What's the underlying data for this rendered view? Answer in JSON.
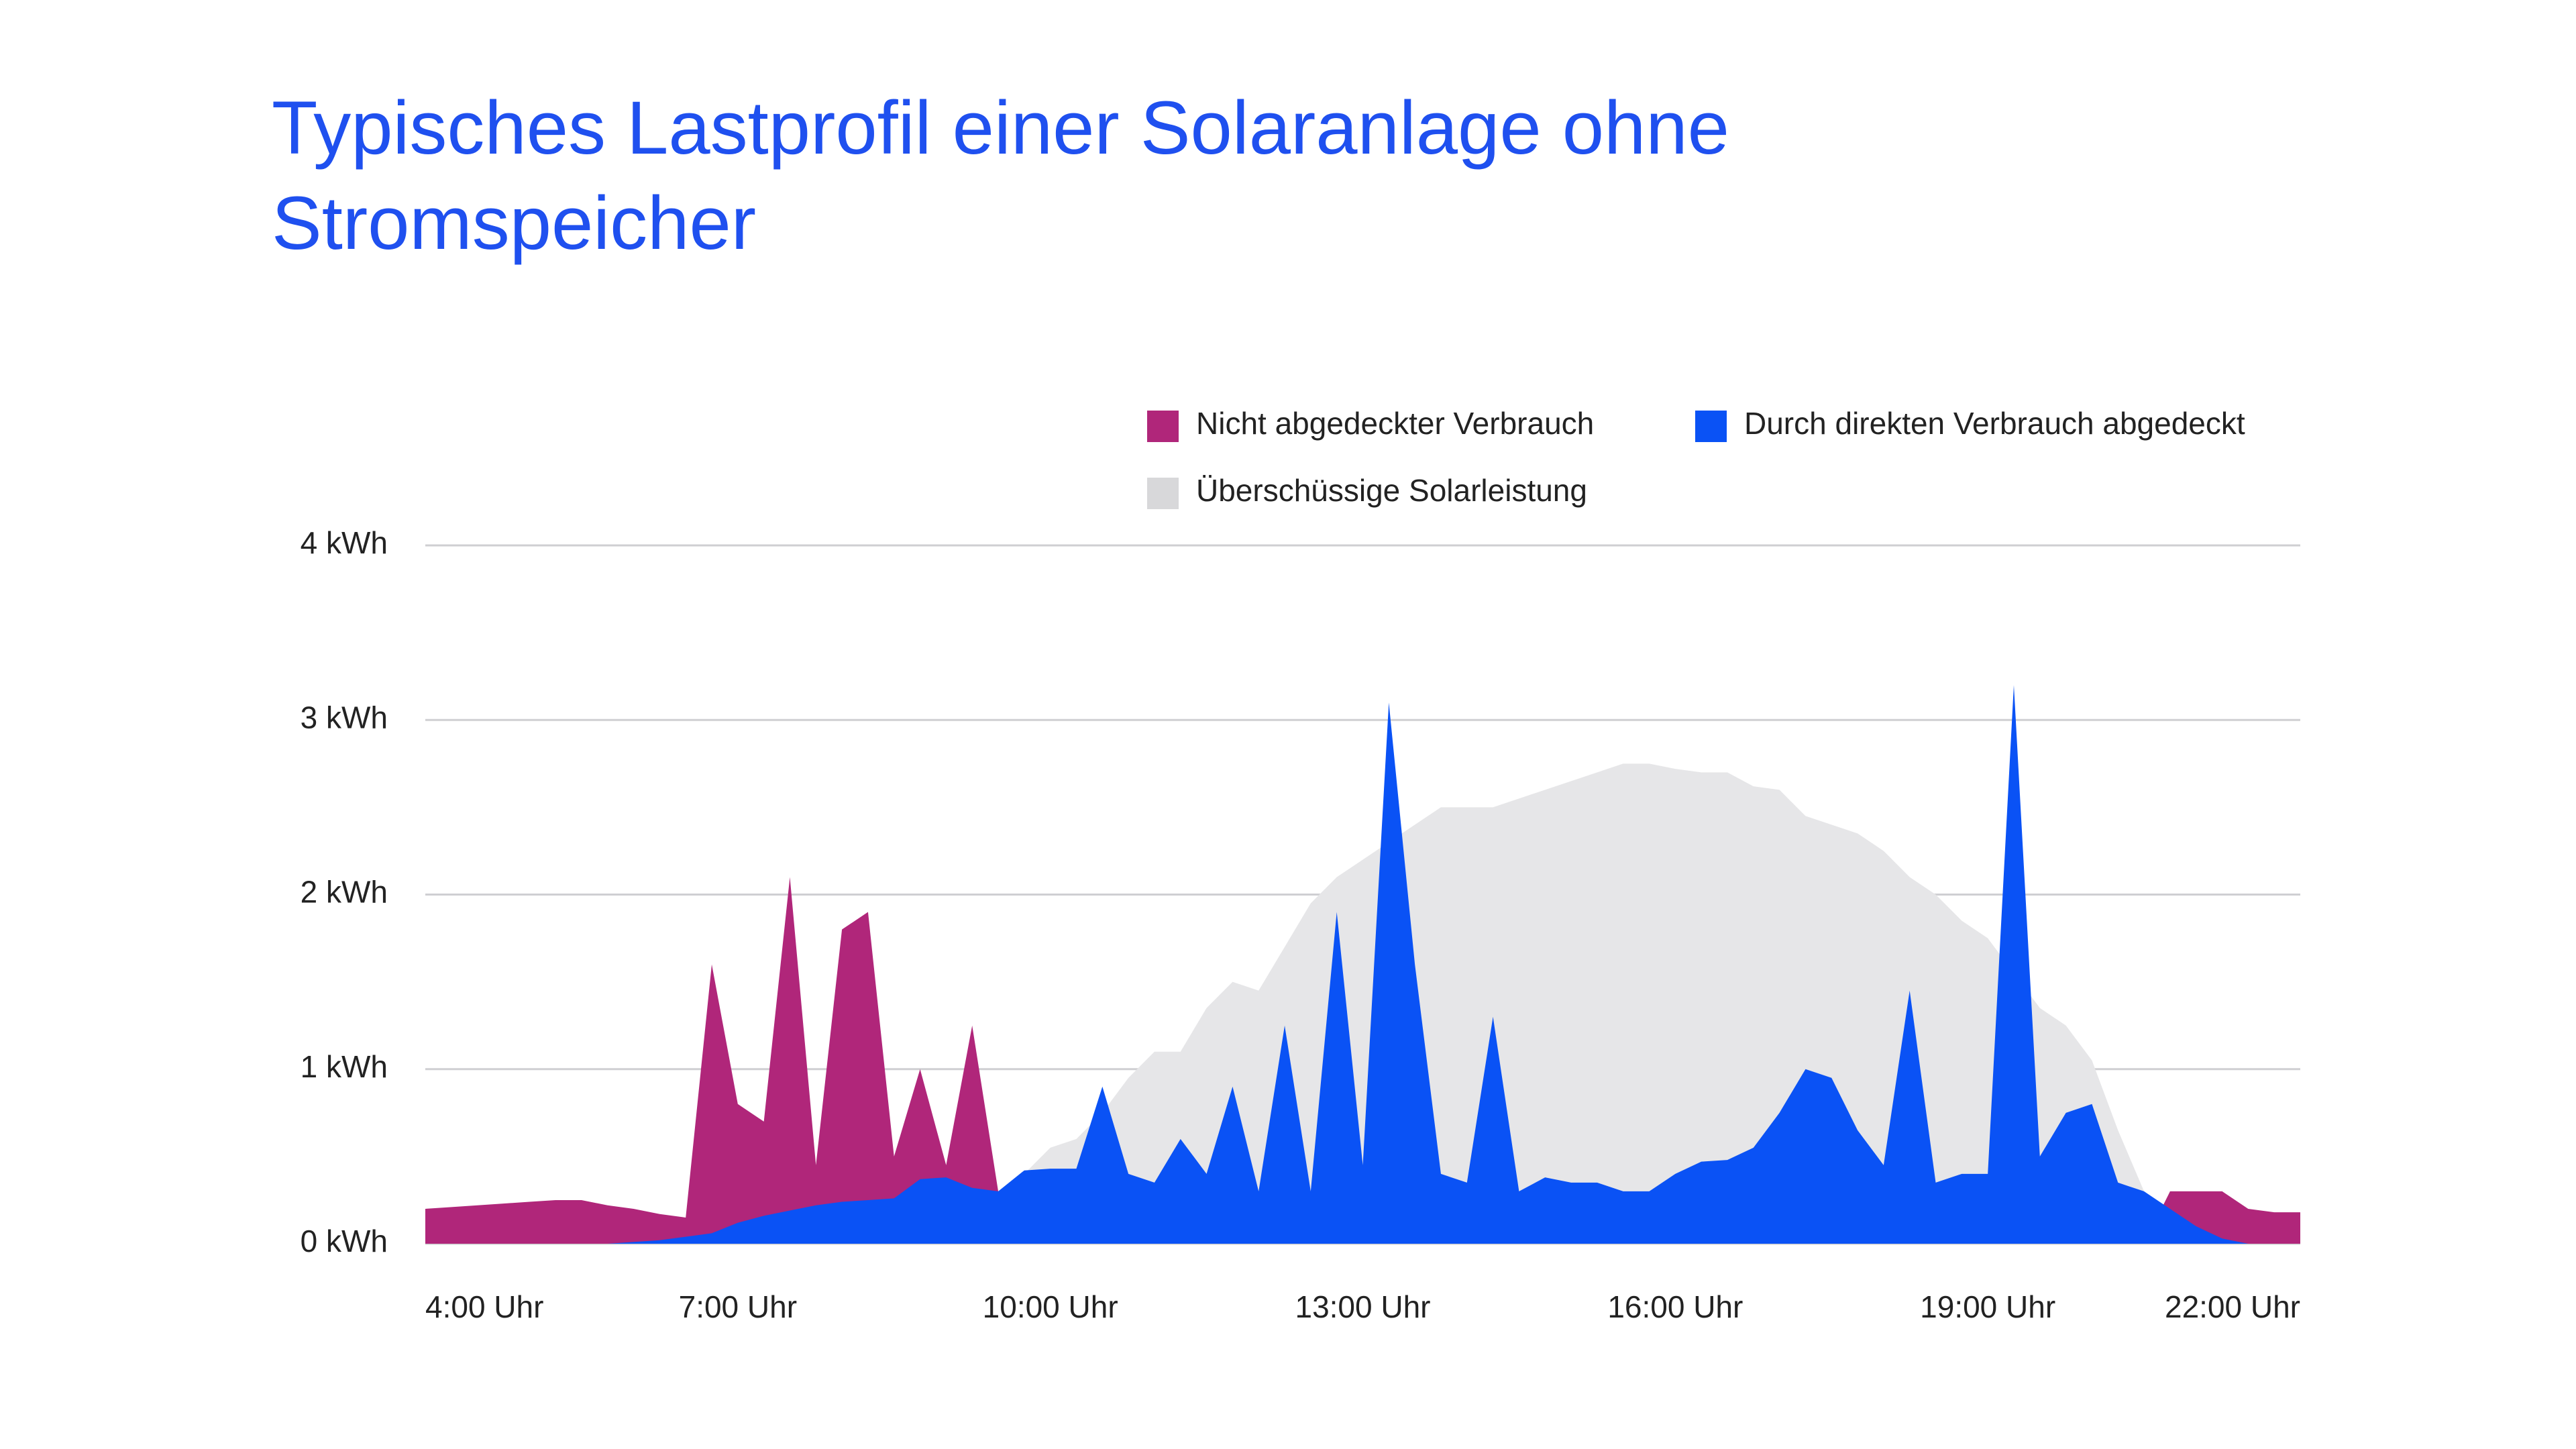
{
  "chart_data": {
    "type": "area",
    "title": "Typisches Lastprofil einer Solaranlage ohne Stromspeicher",
    "x": [
      4,
      4.25,
      4.5,
      4.75,
      5,
      5.25,
      5.5,
      5.75,
      6,
      6.25,
      6.5,
      6.75,
      7,
      7.25,
      7.5,
      7.75,
      8,
      8.25,
      8.5,
      8.75,
      9,
      9.25,
      9.5,
      9.75,
      10,
      10.25,
      10.5,
      10.75,
      11,
      11.25,
      11.5,
      11.75,
      12,
      12.25,
      12.5,
      12.75,
      13,
      13.25,
      13.5,
      13.75,
      14,
      14.25,
      14.5,
      14.75,
      15,
      15.25,
      15.5,
      15.75,
      16,
      16.25,
      16.5,
      16.75,
      17,
      17.25,
      17.5,
      17.75,
      18,
      18.25,
      18.5,
      18.75,
      19,
      19.25,
      19.5,
      19.75,
      20,
      20.25,
      20.5,
      20.75,
      21,
      21.25,
      21.5,
      21.75,
      22
    ],
    "xlim": [
      4,
      22
    ],
    "xticks": [
      {
        "value": 4,
        "label": "4:00 Uhr"
      },
      {
        "value": 7,
        "label": "7:00 Uhr"
      },
      {
        "value": 10,
        "label": "10:00 Uhr"
      },
      {
        "value": 13,
        "label": "13:00 Uhr"
      },
      {
        "value": 16,
        "label": "16:00 Uhr"
      },
      {
        "value": 19,
        "label": "19:00 Uhr"
      },
      {
        "value": 22,
        "label": "22:00 Uhr"
      }
    ],
    "ylim": [
      0,
      4
    ],
    "yticks": [
      {
        "value": 0,
        "label": "0 kWh"
      },
      {
        "value": 1,
        "label": "1 kWh"
      },
      {
        "value": 2,
        "label": "2 kWh"
      },
      {
        "value": 3,
        "label": "3 kWh"
      },
      {
        "value": 4,
        "label": "4 kWh"
      }
    ],
    "grid": true,
    "series": [
      {
        "name": "Nicht abgedeckter Verbrauch",
        "color": "#b0267a",
        "values": [
          0.2,
          0.21,
          0.22,
          0.23,
          0.24,
          0.25,
          0.25,
          0.22,
          0.2,
          0.17,
          0.15,
          1.6,
          0.8,
          0.7,
          2.1,
          0.45,
          1.8,
          1.9,
          0.5,
          1.0,
          0.45,
          1.25,
          0.3,
          0,
          0,
          0,
          0,
          0,
          0,
          0,
          0,
          0,
          0,
          0,
          0,
          0,
          0,
          0,
          0,
          0,
          0,
          0,
          0,
          0,
          0,
          0,
          0,
          0,
          0,
          0,
          0,
          0,
          0,
          0,
          0,
          0,
          0,
          0,
          0,
          0,
          0,
          0,
          0,
          0,
          0,
          0,
          0,
          0.3,
          0.3,
          0.3,
          0.2,
          0.18,
          0.18
        ]
      },
      {
        "name": "Durch direkten Verbrauch abgedeckt",
        "color": "#0a52f5",
        "values": [
          0,
          0,
          0,
          0,
          0,
          0,
          0,
          0,
          0.01,
          0.02,
          0.04,
          0.06,
          0.12,
          0.16,
          0.19,
          0.22,
          0.24,
          0.25,
          0.26,
          0.37,
          0.38,
          0.32,
          0.3,
          0.42,
          0.43,
          0.43,
          0.9,
          0.4,
          0.35,
          0.6,
          0.4,
          0.9,
          0.3,
          1.25,
          0.3,
          1.9,
          0.45,
          3.1,
          1.6,
          0.4,
          0.35,
          1.3,
          0.3,
          0.38,
          0.35,
          0.35,
          0.3,
          0.3,
          0.4,
          0.47,
          0.48,
          0.55,
          0.75,
          1.0,
          0.95,
          0.65,
          0.45,
          1.45,
          0.35,
          0.4,
          0.4,
          3.2,
          0.5,
          0.75,
          0.8,
          0.35,
          0.3,
          0.2,
          0.1,
          0.03,
          0,
          0,
          0
        ]
      },
      {
        "name": "Überschüssige Solarleistung",
        "color": "#e6e6e8",
        "values": [
          0,
          0,
          0,
          0,
          0,
          0,
          0,
          0,
          0,
          0,
          0,
          0,
          0,
          0,
          0,
          0,
          0,
          0,
          0,
          0,
          0,
          0,
          0.2,
          0.4,
          0.55,
          0.6,
          0.75,
          0.95,
          1.1,
          1.1,
          1.35,
          1.5,
          1.45,
          1.7,
          1.95,
          2.1,
          2.2,
          2.3,
          2.4,
          2.5,
          2.5,
          2.5,
          2.55,
          2.6,
          2.65,
          2.7,
          2.75,
          2.75,
          2.72,
          2.7,
          2.7,
          2.62,
          2.6,
          2.45,
          2.4,
          2.35,
          2.25,
          2.1,
          2.0,
          1.85,
          1.75,
          1.55,
          1.35,
          1.25,
          1.05,
          0.65,
          0.3,
          0,
          0,
          0,
          0,
          0,
          0
        ]
      }
    ]
  }
}
